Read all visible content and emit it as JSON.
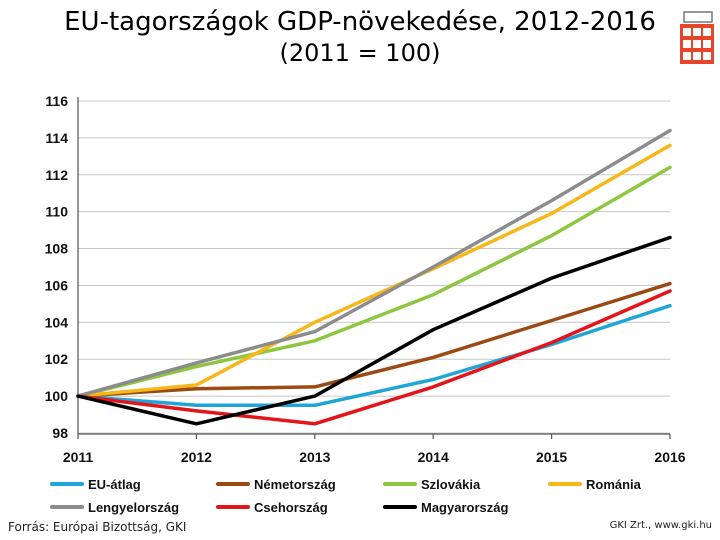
{
  "title": "EU-tagországok GDP-növekedése, 2012-2016",
  "subtitle": "(2011 = 100)",
  "source": "Forrás: Európai Bizottság, GKI",
  "credit": "GKI Zrt., www.gki.hu",
  "chart_data": {
    "type": "line",
    "title": "EU-tagországok GDP-növekedése, 2012-2016",
    "subtitle": "(2011 = 100)",
    "xlabel": "",
    "ylabel": "",
    "x": [
      2011,
      2012,
      2013,
      2014,
      2015,
      2016
    ],
    "x_tick_labels": [
      "2011",
      "2012",
      "2013",
      "2014",
      "2015",
      "2016"
    ],
    "ylim": [
      98,
      116
    ],
    "y_ticks": [
      98,
      100,
      102,
      104,
      106,
      108,
      110,
      112,
      114,
      116
    ],
    "grid": true,
    "legend_position": "bottom",
    "series": [
      {
        "name": "EU-átlag",
        "color": "#1fa5d8",
        "values": [
          100,
          99.5,
          99.5,
          100.9,
          102.8,
          104.9
        ]
      },
      {
        "name": "Németország",
        "color": "#9b4a13",
        "values": [
          100,
          100.4,
          100.5,
          102.1,
          104.1,
          106.1
        ]
      },
      {
        "name": "Szlovákia",
        "color": "#8dc63f",
        "values": [
          100,
          101.6,
          103.0,
          105.5,
          108.7,
          112.4
        ]
      },
      {
        "name": "Románia",
        "color": "#f7b718",
        "values": [
          100,
          100.6,
          104.0,
          106.9,
          109.9,
          113.6
        ]
      },
      {
        "name": "Lengyelország",
        "color": "#8c8c8c",
        "values": [
          100,
          101.8,
          103.5,
          107.0,
          110.6,
          114.4
        ]
      },
      {
        "name": "Csehország",
        "color": "#e3151b",
        "values": [
          100,
          99.2,
          98.5,
          100.5,
          102.9,
          105.7
        ]
      },
      {
        "name": "Magyarország",
        "color": "#000000",
        "values": [
          100,
          98.5,
          100.0,
          103.6,
          106.4,
          108.6
        ]
      }
    ]
  }
}
